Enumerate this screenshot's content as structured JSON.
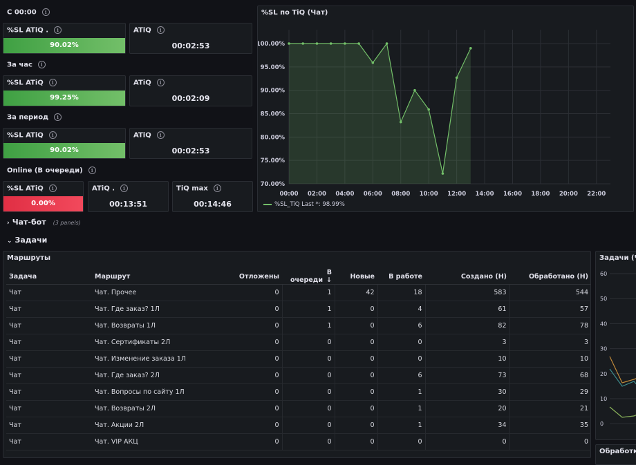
{
  "colors": {
    "green": "#73bf69",
    "red": "#f2495c",
    "bg": "#111217",
    "panel": "#181b1f"
  },
  "groups": [
    {
      "title": "С 00:00",
      "sl_label": "%SL ATiQ .",
      "sl_value": "90.02%",
      "atiq_label": "ATiQ",
      "atiq_value": "00:02:53"
    },
    {
      "title": "За час",
      "sl_label": "%SL ATiQ",
      "sl_value": "99.25%",
      "atiq_label": "ATiQ",
      "atiq_value": "00:02:09"
    },
    {
      "title": "За период",
      "sl_label": "%SL ATiQ",
      "sl_value": "90.02%",
      "atiq_label": "ATiQ",
      "atiq_value": "00:02:53"
    }
  ],
  "online": {
    "title": "Online (В очереди)",
    "sl_label": "%SL ATiQ",
    "sl_value": "0.00%",
    "atiq_label": "ATiQ .",
    "atiq_value": "00:13:51",
    "tiq_label": "TiQ max",
    "tiq_value": "00:14:46"
  },
  "sl_chart": {
    "title": "%SL по TiQ (Чат)",
    "legend": "%SL_TiQ  Last *: 98.99%"
  },
  "chart_data": {
    "type": "area",
    "title": "%SL по TiQ (Чат)",
    "x": [
      "00:00",
      "01:00",
      "02:00",
      "03:00",
      "04:00",
      "05:00",
      "06:00",
      "07:00",
      "08:00",
      "09:00",
      "10:00",
      "11:00",
      "12:00",
      "13:00"
    ],
    "series": [
      {
        "name": "%SL_TiQ",
        "values": [
          100,
          100,
          100,
          100,
          100,
          100,
          95.9,
          100,
          83.2,
          90,
          85.9,
          72.2,
          92.7,
          98.99
        ]
      }
    ],
    "x_ticks": [
      "00:00",
      "02:00",
      "04:00",
      "06:00",
      "08:00",
      "10:00",
      "12:00",
      "14:00",
      "16:00",
      "18:00",
      "20:00",
      "22:00"
    ],
    "y_ticks": [
      "100.00%",
      "95.00%",
      "90.00%",
      "85.00%",
      "80.00%",
      "75.00%",
      "70.00%"
    ],
    "ylim": [
      70,
      100
    ],
    "grid": true,
    "legend_position": "bottom-left"
  },
  "rows": {
    "chatbot": {
      "title": "Чат-бот",
      "sub": "(3 panels)"
    },
    "tasks": {
      "title": "Задачи"
    }
  },
  "routes": {
    "title": "Маршруты",
    "headers": [
      "Задача",
      "Маршрут",
      "Отложены",
      "В очереди",
      "Новые",
      "В работе",
      "Создано (Н)",
      "Обработано (Н)"
    ],
    "sort_icon": "↓",
    "rows": [
      [
        "Чат",
        "Чат. Прочее",
        "0",
        "1",
        "42",
        "18",
        "583",
        "544"
      ],
      [
        "Чат",
        "Чат. Где заказ? 1Л",
        "0",
        "1",
        "0",
        "4",
        "61",
        "57"
      ],
      [
        "Чат",
        "Чат. Возвраты 1Л",
        "0",
        "1",
        "0",
        "6",
        "82",
        "78"
      ],
      [
        "Чат",
        "Чат. Сертификаты 2Л",
        "0",
        "0",
        "0",
        "0",
        "3",
        "3"
      ],
      [
        "Чат",
        "Чат. Изменение заказа 1Л",
        "0",
        "0",
        "0",
        "0",
        "10",
        "10"
      ],
      [
        "Чат",
        "Чат. Где заказ? 2Л",
        "0",
        "0",
        "0",
        "6",
        "73",
        "68"
      ],
      [
        "Чат",
        "Чат. Вопросы по сайту 1Л",
        "0",
        "0",
        "0",
        "1",
        "30",
        "29"
      ],
      [
        "Чат",
        "Чат. Возвраты 2Л",
        "0",
        "0",
        "0",
        "1",
        "20",
        "21"
      ],
      [
        "Чат",
        "Чат. Акции 2Л",
        "0",
        "0",
        "0",
        "1",
        "34",
        "35"
      ],
      [
        "Чат",
        "Чат. VIP АКЦ",
        "0",
        "0",
        "0",
        "0",
        "0",
        "0"
      ]
    ]
  },
  "tasks_panel": {
    "title": "Задачи (Чат",
    "y_ticks": [
      "60",
      "50",
      "40",
      "30",
      "20",
      "10",
      "0"
    ]
  },
  "processing_panel": {
    "title": "Обработка"
  }
}
